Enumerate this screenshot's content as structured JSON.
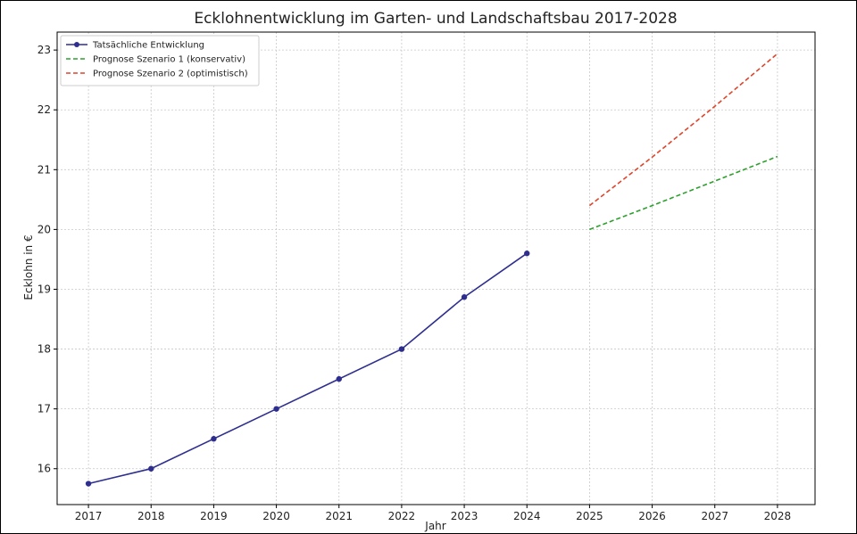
{
  "chart_data": {
    "type": "line",
    "title": "Ecklohnentwicklung im Garten- und Landschaftsbau 2017-2028",
    "xlabel": "Jahr",
    "ylabel": "Ecklohn in €",
    "categories": [
      "2017",
      "2018",
      "2019",
      "2020",
      "2021",
      "2022",
      "2023",
      "2024",
      "2025",
      "2026",
      "2027",
      "2028"
    ],
    "xlim": [
      2016.5,
      2028.6
    ],
    "ylim": [
      15.4,
      23.3
    ],
    "yticks": [
      16,
      17,
      18,
      19,
      20,
      21,
      22,
      23
    ],
    "grid": true,
    "legend_position": "top-left",
    "series": [
      {
        "name": "Tatsächliche Entwicklung",
        "color": "#2e2e8f",
        "style": "solid-markers",
        "x": [
          2017,
          2018,
          2019,
          2020,
          2021,
          2022,
          2023,
          2024
        ],
        "y": [
          15.75,
          16.0,
          16.5,
          17.0,
          17.5,
          18.0,
          18.87,
          19.6
        ]
      },
      {
        "name": "Prognose Szenario 1 (konservativ)",
        "color": "#2ca02c",
        "style": "dashed",
        "x": [
          2025,
          2026,
          2027,
          2028
        ],
        "y": [
          20.0,
          20.4,
          20.81,
          21.22
        ]
      },
      {
        "name": "Prognose Szenario 2 (optimistisch)",
        "color": "#e0442a",
        "style": "dashed",
        "x": [
          2025,
          2026,
          2027,
          2028
        ],
        "y": [
          20.4,
          21.21,
          22.06,
          22.94
        ]
      }
    ]
  }
}
